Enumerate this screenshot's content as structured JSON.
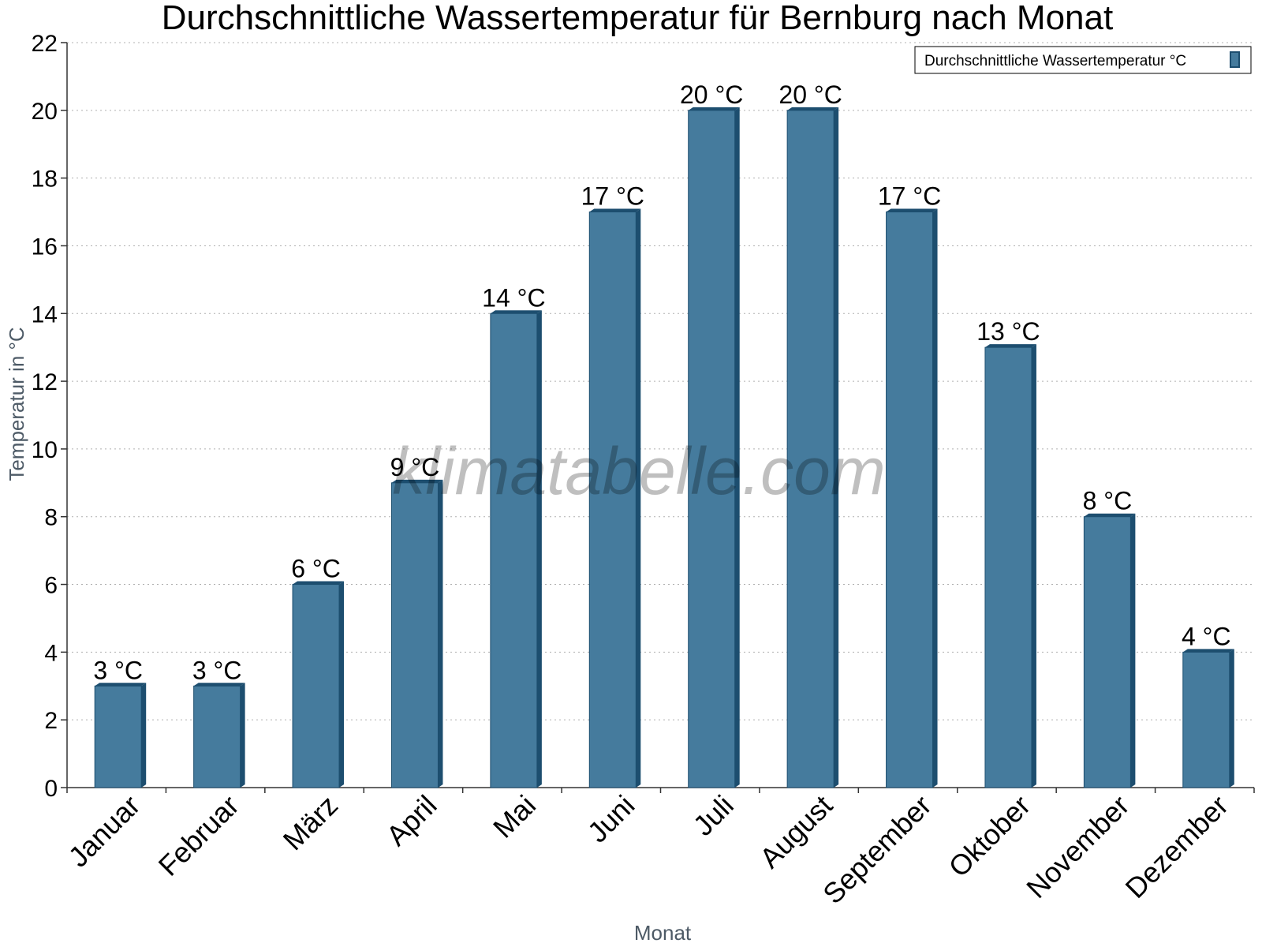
{
  "chart_data": {
    "type": "bar",
    "title": "Durchschnittliche Wassertemperatur für Bernburg nach Monat",
    "xlabel": "Monat",
    "ylabel": "Temperatur in °C",
    "categories": [
      "Januar",
      "Februar",
      "März",
      "April",
      "Mai",
      "Juni",
      "Juli",
      "August",
      "September",
      "Oktober",
      "November",
      "Dezember"
    ],
    "series": [
      {
        "name": "Durchschnittliche Wassertemperatur °C",
        "values": [
          3,
          3,
          6,
          9,
          14,
          17,
          20,
          20,
          17,
          13,
          8,
          4
        ],
        "data_labels": [
          "3 °C",
          "3 °C",
          "6 °C",
          "9 °C",
          "14 °C",
          "17 °C",
          "20 °C",
          "20 °C",
          "17 °C",
          "13 °C",
          "8 °C",
          "4 °C"
        ],
        "color": "#457b9d",
        "edge_color": "#1d4e6f"
      }
    ],
    "ylim": [
      0,
      22
    ],
    "yticks": [
      0,
      2,
      4,
      6,
      8,
      10,
      12,
      14,
      16,
      18,
      20,
      22
    ],
    "grid": true,
    "legend_position": "top-right",
    "watermark": "klimatabelle.com"
  }
}
